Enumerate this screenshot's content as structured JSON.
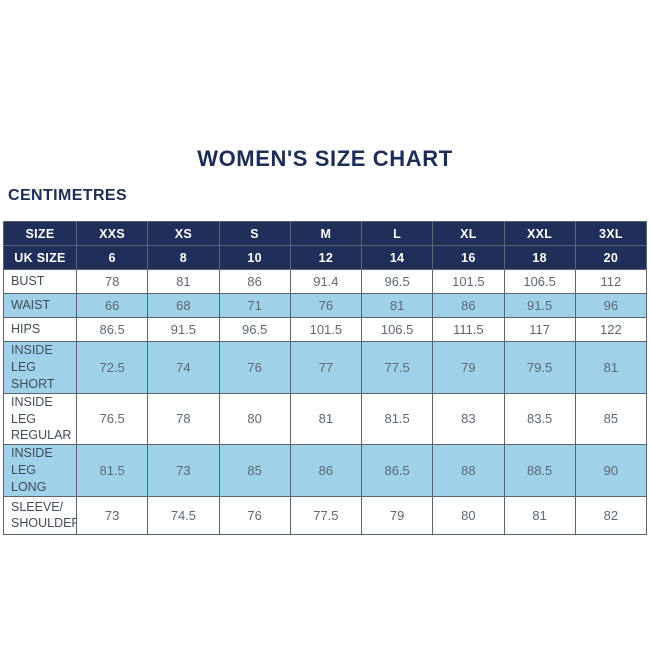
{
  "header": {
    "title": "WOMEN'S SIZE CHART",
    "units_label": "CENTIMETRES"
  },
  "size_chart": {
    "columns": [
      "SIZE",
      "XXS",
      "XS",
      "S",
      "M",
      "L",
      "XL",
      "XXL",
      "3XL"
    ],
    "uk": {
      "label": "UK SIZE",
      "values": [
        "6",
        "8",
        "10",
        "12",
        "14",
        "16",
        "18",
        "20"
      ]
    },
    "rows": [
      {
        "label": "BUST",
        "values": [
          "78",
          "81",
          "86",
          "91.4",
          "96.5",
          "101.5",
          "106.5",
          "112"
        ]
      },
      {
        "label": "WAIST",
        "values": [
          "66",
          "68",
          "71",
          "76",
          "81",
          "86",
          "91.5",
          "96"
        ]
      },
      {
        "label": "HIPS",
        "values": [
          "86.5",
          "91.5",
          "96.5",
          "101.5",
          "106.5",
          "111.5",
          "117",
          "122"
        ]
      },
      {
        "label": "INSIDE LEG\nSHORT",
        "values": [
          "72.5",
          "74",
          "76",
          "77",
          "77.5",
          "79",
          "79.5",
          "81"
        ]
      },
      {
        "label": "INSIDE LEG\nREGULAR",
        "values": [
          "76.5",
          "78",
          "80",
          "81",
          "81.5",
          "83",
          "83.5",
          "85"
        ]
      },
      {
        "label": "INSIDE LEG\nLONG",
        "values": [
          "81.5",
          "73",
          "85",
          "86",
          "86.5",
          "88",
          "88.5",
          "90"
        ]
      },
      {
        "label": "SLEEVE/\nSHOULDER",
        "values": [
          "73",
          "74.5",
          "76",
          "77.5",
          "79",
          "80",
          "81",
          "82"
        ]
      }
    ],
    "colors": {
      "header_navy": "#1f2f5a",
      "row_blue": "#9fd1e8",
      "row_white": "#ffffff",
      "border": "#5a6370",
      "title_text": "#1e2d58"
    }
  }
}
